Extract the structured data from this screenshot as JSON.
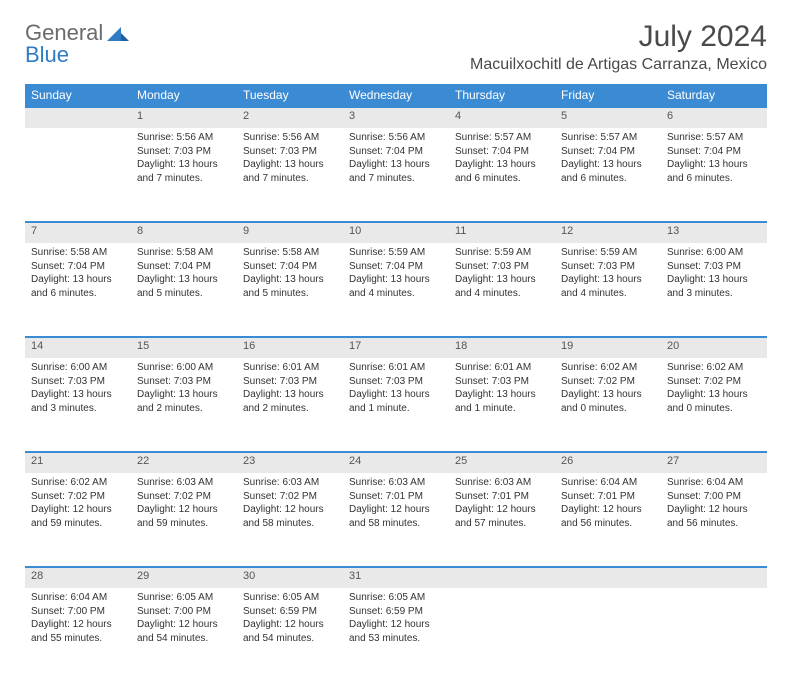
{
  "logo": {
    "word1": "General",
    "word2": "Blue"
  },
  "title": "July 2024",
  "location": "Macuilxochitl de Artigas Carranza, Mexico",
  "day_headers": [
    "Sunday",
    "Monday",
    "Tuesday",
    "Wednesday",
    "Thursday",
    "Friday",
    "Saturday"
  ],
  "header_bg": "#3b8bd4",
  "header_fg": "#ffffff",
  "daynum_bg": "#e9e9e9",
  "rule_color": "#3b8bd4",
  "start_weekday": 1,
  "days": [
    {
      "n": 1,
      "sr": "5:56 AM",
      "ss": "7:03 PM",
      "dl": "13 hours and 7 minutes."
    },
    {
      "n": 2,
      "sr": "5:56 AM",
      "ss": "7:03 PM",
      "dl": "13 hours and 7 minutes."
    },
    {
      "n": 3,
      "sr": "5:56 AM",
      "ss": "7:04 PM",
      "dl": "13 hours and 7 minutes."
    },
    {
      "n": 4,
      "sr": "5:57 AM",
      "ss": "7:04 PM",
      "dl": "13 hours and 6 minutes."
    },
    {
      "n": 5,
      "sr": "5:57 AM",
      "ss": "7:04 PM",
      "dl": "13 hours and 6 minutes."
    },
    {
      "n": 6,
      "sr": "5:57 AM",
      "ss": "7:04 PM",
      "dl": "13 hours and 6 minutes."
    },
    {
      "n": 7,
      "sr": "5:58 AM",
      "ss": "7:04 PM",
      "dl": "13 hours and 6 minutes."
    },
    {
      "n": 8,
      "sr": "5:58 AM",
      "ss": "7:04 PM",
      "dl": "13 hours and 5 minutes."
    },
    {
      "n": 9,
      "sr": "5:58 AM",
      "ss": "7:04 PM",
      "dl": "13 hours and 5 minutes."
    },
    {
      "n": 10,
      "sr": "5:59 AM",
      "ss": "7:04 PM",
      "dl": "13 hours and 4 minutes."
    },
    {
      "n": 11,
      "sr": "5:59 AM",
      "ss": "7:03 PM",
      "dl": "13 hours and 4 minutes."
    },
    {
      "n": 12,
      "sr": "5:59 AM",
      "ss": "7:03 PM",
      "dl": "13 hours and 4 minutes."
    },
    {
      "n": 13,
      "sr": "6:00 AM",
      "ss": "7:03 PM",
      "dl": "13 hours and 3 minutes."
    },
    {
      "n": 14,
      "sr": "6:00 AM",
      "ss": "7:03 PM",
      "dl": "13 hours and 3 minutes."
    },
    {
      "n": 15,
      "sr": "6:00 AM",
      "ss": "7:03 PM",
      "dl": "13 hours and 2 minutes."
    },
    {
      "n": 16,
      "sr": "6:01 AM",
      "ss": "7:03 PM",
      "dl": "13 hours and 2 minutes."
    },
    {
      "n": 17,
      "sr": "6:01 AM",
      "ss": "7:03 PM",
      "dl": "13 hours and 1 minute."
    },
    {
      "n": 18,
      "sr": "6:01 AM",
      "ss": "7:03 PM",
      "dl": "13 hours and 1 minute."
    },
    {
      "n": 19,
      "sr": "6:02 AM",
      "ss": "7:02 PM",
      "dl": "13 hours and 0 minutes."
    },
    {
      "n": 20,
      "sr": "6:02 AM",
      "ss": "7:02 PM",
      "dl": "13 hours and 0 minutes."
    },
    {
      "n": 21,
      "sr": "6:02 AM",
      "ss": "7:02 PM",
      "dl": "12 hours and 59 minutes."
    },
    {
      "n": 22,
      "sr": "6:03 AM",
      "ss": "7:02 PM",
      "dl": "12 hours and 59 minutes."
    },
    {
      "n": 23,
      "sr": "6:03 AM",
      "ss": "7:02 PM",
      "dl": "12 hours and 58 minutes."
    },
    {
      "n": 24,
      "sr": "6:03 AM",
      "ss": "7:01 PM",
      "dl": "12 hours and 58 minutes."
    },
    {
      "n": 25,
      "sr": "6:03 AM",
      "ss": "7:01 PM",
      "dl": "12 hours and 57 minutes."
    },
    {
      "n": 26,
      "sr": "6:04 AM",
      "ss": "7:01 PM",
      "dl": "12 hours and 56 minutes."
    },
    {
      "n": 27,
      "sr": "6:04 AM",
      "ss": "7:00 PM",
      "dl": "12 hours and 56 minutes."
    },
    {
      "n": 28,
      "sr": "6:04 AM",
      "ss": "7:00 PM",
      "dl": "12 hours and 55 minutes."
    },
    {
      "n": 29,
      "sr": "6:05 AM",
      "ss": "7:00 PM",
      "dl": "12 hours and 54 minutes."
    },
    {
      "n": 30,
      "sr": "6:05 AM",
      "ss": "6:59 PM",
      "dl": "12 hours and 54 minutes."
    },
    {
      "n": 31,
      "sr": "6:05 AM",
      "ss": "6:59 PM",
      "dl": "12 hours and 53 minutes."
    }
  ],
  "labels": {
    "sunrise": "Sunrise:",
    "sunset": "Sunset:",
    "daylight": "Daylight:"
  }
}
